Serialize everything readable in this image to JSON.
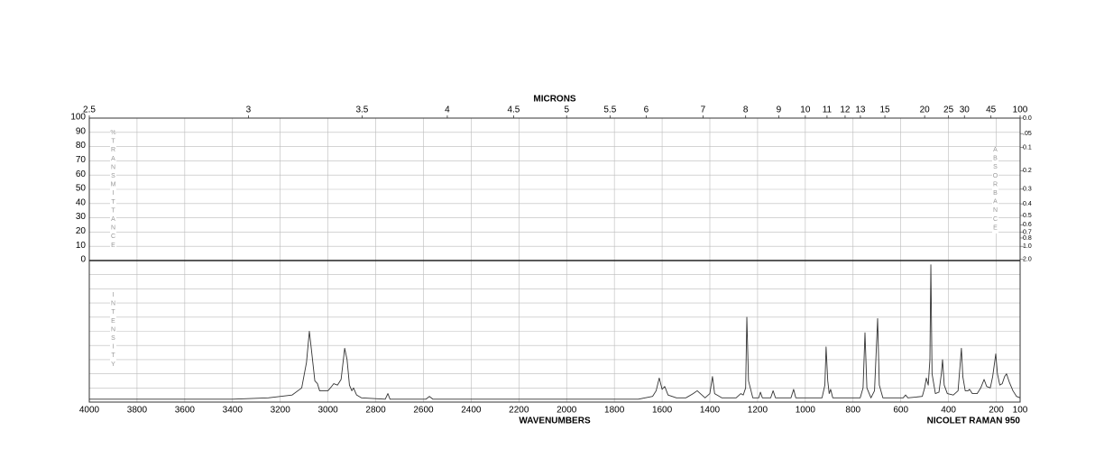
{
  "chart_data": {
    "type": "line",
    "title": "MICRONS",
    "xlabel": "WAVENUMBERS",
    "instrument": "NICOLET RAMAN 950",
    "xlim": [
      4000,
      100
    ],
    "xticks": [
      4000,
      3800,
      3600,
      3400,
      3200,
      3000,
      2800,
      2600,
      2400,
      2200,
      2000,
      1800,
      1600,
      1400,
      1200,
      1000,
      800,
      600,
      400,
      200,
      100
    ],
    "micron_ticks": [
      2.5,
      3,
      3.5,
      4,
      4.5,
      5,
      5.5,
      6,
      7,
      8,
      9,
      10,
      11,
      12,
      13,
      15,
      20,
      25,
      30,
      45,
      100
    ],
    "transmittance_label": "%TRANSMITTANCE",
    "tlim": [
      0,
      100
    ],
    "tticks": [
      0,
      10,
      20,
      30,
      40,
      50,
      60,
      70,
      80,
      90,
      100
    ],
    "absorbance_label": "ABSORBANCE",
    "aticks": [
      {
        "value": 0,
        "label": "0.0"
      },
      {
        "value": 0.05,
        "label": ".05"
      },
      0.1,
      0.2,
      0.3,
      0.4,
      0.5,
      0.6,
      0.7,
      0.8,
      {
        "value": 1,
        "label": "1.0"
      },
      {
        "value": 2,
        "label": "2.0"
      }
    ],
    "intensity_label": "INTENSITY",
    "ylim": [
      0,
      100
    ],
    "color": "#333333",
    "grid": true,
    "x": [
      4000,
      3400,
      3250,
      3150,
      3110,
      3090,
      3078,
      3068,
      3055,
      3044,
      3035,
      3000,
      2985,
      2976,
      2960,
      2945,
      2930,
      2920,
      2910,
      2900,
      2893,
      2880,
      2860,
      2760,
      2749,
      2740,
      2590,
      2575,
      2560,
      1700,
      1640,
      1625,
      1612,
      1600,
      1589,
      1575,
      1540,
      1500,
      1470,
      1453,
      1440,
      1420,
      1400,
      1389,
      1380,
      1350,
      1290,
      1270,
      1260,
      1250,
      1245,
      1238,
      1220,
      1195,
      1188,
      1180,
      1145,
      1135,
      1125,
      1060,
      1049,
      1040,
      930,
      918,
      913,
      906,
      900,
      894,
      885,
      770,
      758,
      750,
      742,
      725,
      710,
      697,
      690,
      675,
      590,
      580,
      570,
      510,
      500,
      493,
      485,
      478,
      474,
      469,
      455,
      440,
      430,
      425,
      418,
      405,
      380,
      360,
      352,
      346,
      340,
      330,
      318,
      312,
      300,
      280,
      265,
      251,
      240,
      225,
      215,
      202,
      195,
      185,
      175,
      165,
      157,
      145,
      130,
      115,
      100
    ],
    "values": [
      2,
      2,
      3,
      5,
      10,
      28,
      50,
      35,
      15,
      13,
      8,
      8,
      11,
      13,
      12,
      16,
      38,
      30,
      12,
      8,
      10,
      5,
      3,
      2,
      6,
      2,
      2,
      4,
      2,
      2,
      4,
      8,
      17,
      9,
      11,
      5,
      3,
      3,
      6,
      8,
      6,
      3,
      6,
      18,
      6,
      3,
      3,
      6,
      5,
      10,
      60,
      15,
      3,
      3,
      7,
      3,
      3,
      8,
      3,
      3,
      9,
      3,
      3,
      12,
      39,
      15,
      6,
      9,
      3,
      3,
      10,
      49,
      10,
      3,
      8,
      59,
      12,
      3,
      3,
      5,
      3,
      4,
      10,
      17,
      12,
      30,
      97,
      20,
      6,
      7,
      20,
      30,
      12,
      6,
      5,
      8,
      25,
      38,
      18,
      8,
      8,
      9,
      6,
      6,
      10,
      16,
      11,
      10,
      18,
      34,
      20,
      12,
      13,
      18,
      20,
      14,
      8,
      4,
      3
    ]
  }
}
